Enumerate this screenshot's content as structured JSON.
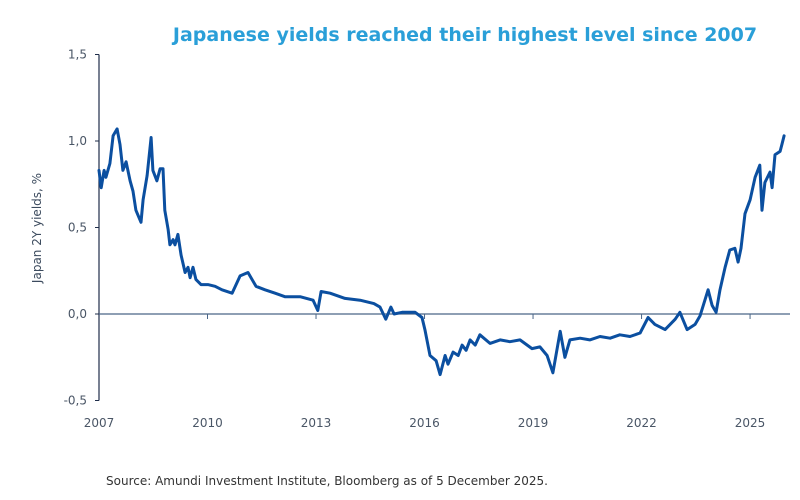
{
  "chart_data": {
    "type": "line",
    "title": "Japanese yields reached their highest level since 2007",
    "xlabel": "",
    "ylabel": "Japan 2Y yields, %",
    "xlim": [
      2007,
      2026.1
    ],
    "ylim": [
      -0.5,
      1.5
    ],
    "x_ticks": [
      "2007",
      "2010",
      "2013",
      "2016",
      "2019",
      "2022",
      "2025"
    ],
    "y_ticks": [
      "1,5",
      "1,0",
      "0,5",
      "0,0",
      "-0,5"
    ],
    "y_tick_values": [
      1.5,
      1.0,
      0.5,
      0.0,
      -0.5
    ],
    "grid": false,
    "line_color": "#0b4fa0",
    "title_color": "#2a9fd8",
    "series": [
      {
        "x": [
          2007.0,
          2007.06,
          2007.14,
          2007.19,
          2007.3,
          2007.39,
          2007.5,
          2007.58,
          2007.66,
          2007.75,
          2007.86,
          2007.94,
          2008.02,
          2008.08,
          2008.16,
          2008.22,
          2008.33,
          2008.44,
          2008.49,
          2008.6,
          2008.69,
          2008.77,
          2008.82,
          2008.91,
          2008.96,
          2009.05,
          2009.1,
          2009.18,
          2009.27,
          2009.38,
          2009.46,
          2009.52,
          2009.6,
          2009.68,
          2009.82,
          2010.01,
          2010.21,
          2010.4,
          2010.68,
          2010.9,
          2011.12,
          2011.34,
          2011.59,
          2011.87,
          2012.14,
          2012.56,
          2012.92,
          2013.05,
          2013.14,
          2013.39,
          2013.8,
          2014.22,
          2014.6,
          2014.77,
          2014.93,
          2015.07,
          2015.16,
          2015.38,
          2015.74,
          2015.93,
          2016.01,
          2016.15,
          2016.32,
          2016.43,
          2016.57,
          2016.65,
          2016.79,
          2016.93,
          2017.04,
          2017.15,
          2017.26,
          2017.4,
          2017.53,
          2017.81,
          2018.09,
          2018.36,
          2018.64,
          2018.97,
          2019.19,
          2019.39,
          2019.55,
          2019.75,
          2019.88,
          2020.02,
          2020.3,
          2020.57,
          2020.85,
          2021.13,
          2021.4,
          2021.68,
          2021.96,
          2022.18,
          2022.37,
          2022.65,
          2022.93,
          2023.06,
          2023.26,
          2023.48,
          2023.62,
          2023.84,
          2023.95,
          2024.06,
          2024.17,
          2024.31,
          2024.44,
          2024.58,
          2024.67,
          2024.75,
          2024.86,
          2025.0,
          2025.14,
          2025.27,
          2025.33,
          2025.41,
          2025.55,
          2025.61,
          2025.69,
          2025.83,
          2025.88,
          2025.94
        ],
        "values": [
          0.83,
          0.73,
          0.83,
          0.79,
          0.87,
          1.03,
          1.07,
          0.98,
          0.83,
          0.88,
          0.77,
          0.71,
          0.6,
          0.57,
          0.53,
          0.66,
          0.8,
          1.02,
          0.83,
          0.77,
          0.84,
          0.84,
          0.6,
          0.49,
          0.4,
          0.43,
          0.4,
          0.46,
          0.34,
          0.24,
          0.27,
          0.21,
          0.27,
          0.2,
          0.17,
          0.17,
          0.16,
          0.14,
          0.12,
          0.22,
          0.24,
          0.16,
          0.14,
          0.12,
          0.1,
          0.1,
          0.08,
          0.02,
          0.13,
          0.12,
          0.09,
          0.08,
          0.06,
          0.04,
          -0.03,
          0.04,
          0.0,
          0.01,
          0.01,
          -0.02,
          -0.09,
          -0.24,
          -0.27,
          -0.35,
          -0.24,
          -0.29,
          -0.22,
          -0.24,
          -0.18,
          -0.21,
          -0.15,
          -0.18,
          -0.12,
          -0.17,
          -0.15,
          -0.16,
          -0.15,
          -0.2,
          -0.19,
          -0.24,
          -0.34,
          -0.1,
          -0.25,
          -0.15,
          -0.14,
          -0.15,
          -0.13,
          -0.14,
          -0.12,
          -0.13,
          -0.11,
          -0.02,
          -0.06,
          -0.09,
          -0.03,
          0.01,
          -0.09,
          -0.06,
          -0.01,
          0.14,
          0.05,
          0.01,
          0.14,
          0.27,
          0.37,
          0.38,
          0.3,
          0.38,
          0.58,
          0.66,
          0.79,
          0.86,
          0.6,
          0.76,
          0.82,
          0.73,
          0.92,
          0.94,
          0.98,
          1.03
        ]
      }
    ]
  },
  "source": "Source:  Amundi Investment Institute, Bloomberg  as of 5 December  2025."
}
